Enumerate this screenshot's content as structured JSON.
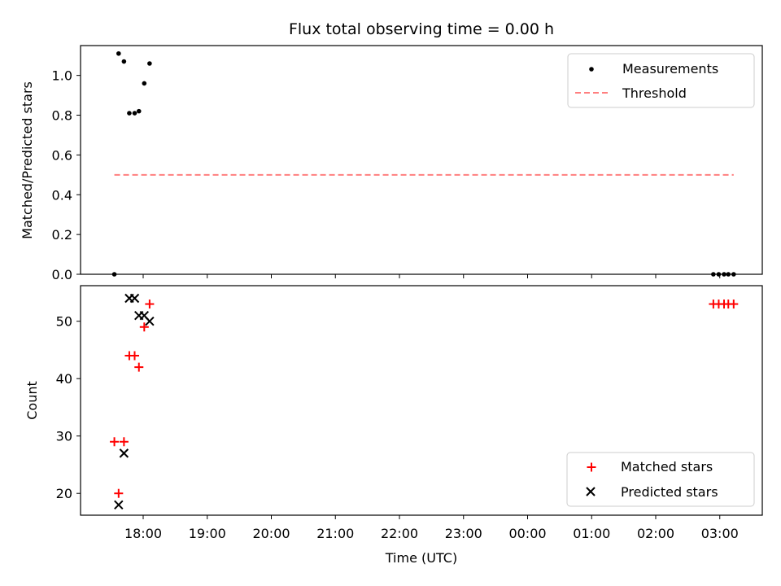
{
  "chart_data": [
    {
      "type": "scatter",
      "title": "Flux total observing time = 0.00 h",
      "ylabel": "Matched/Predicted stars",
      "ylim": [
        0,
        1.15
      ],
      "yticks": [
        "0.0",
        "0.2",
        "0.4",
        "0.6",
        "0.8",
        "1.0"
      ],
      "legend_position": "top-right",
      "series": [
        {
          "name": "Measurements",
          "marker": "dot",
          "color": "#000000",
          "points": [
            {
              "x": "17:33",
              "y": 0.0
            },
            {
              "x": "17:37",
              "y": 1.11
            },
            {
              "x": "17:42",
              "y": 1.07
            },
            {
              "x": "17:47",
              "y": 0.81
            },
            {
              "x": "17:52",
              "y": 0.81
            },
            {
              "x": "17:56",
              "y": 0.82
            },
            {
              "x": "18:01",
              "y": 0.96
            },
            {
              "x": "18:06",
              "y": 1.06
            },
            {
              "x": "02:54",
              "y": 0.0
            },
            {
              "x": "02:59",
              "y": 0.0
            },
            {
              "x": "03:04",
              "y": 0.0
            },
            {
              "x": "03:08",
              "y": 0.0
            },
            {
              "x": "03:13",
              "y": 0.0
            }
          ]
        },
        {
          "name": "Threshold",
          "style": "dashed",
          "color": "#ff7f7f",
          "x_range": [
            "17:33",
            "03:13"
          ],
          "y": 0.5
        }
      ]
    },
    {
      "type": "scatter",
      "xlabel": "Time (UTC)",
      "ylabel": "Count",
      "ylim": [
        16.2,
        56.2
      ],
      "yticks": [
        "20",
        "30",
        "40",
        "50"
      ],
      "xticks": [
        "18:00",
        "19:00",
        "20:00",
        "21:00",
        "22:00",
        "23:00",
        "00:00",
        "01:00",
        "02:00",
        "03:00"
      ],
      "legend_position": "bottom-right",
      "series": [
        {
          "name": "Matched stars",
          "marker": "plus",
          "color": "#ff0000",
          "points": [
            {
              "x": "17:33",
              "y": 29
            },
            {
              "x": "17:37",
              "y": 20
            },
            {
              "x": "17:42",
              "y": 29
            },
            {
              "x": "17:47",
              "y": 44
            },
            {
              "x": "17:52",
              "y": 44
            },
            {
              "x": "17:56",
              "y": 42
            },
            {
              "x": "18:01",
              "y": 49
            },
            {
              "x": "18:06",
              "y": 53
            },
            {
              "x": "02:54",
              "y": 53
            },
            {
              "x": "02:59",
              "y": 53
            },
            {
              "x": "03:04",
              "y": 53
            },
            {
              "x": "03:08",
              "y": 53
            },
            {
              "x": "03:13",
              "y": 53
            }
          ]
        },
        {
          "name": "Predicted stars",
          "marker": "x",
          "color": "#000000",
          "points": [
            {
              "x": "17:37",
              "y": 18
            },
            {
              "x": "17:42",
              "y": 27
            },
            {
              "x": "17:47",
              "y": 54
            },
            {
              "x": "17:52",
              "y": 54
            },
            {
              "x": "17:56",
              "y": 51
            },
            {
              "x": "18:01",
              "y": 51
            },
            {
              "x": "18:06",
              "y": 50
            }
          ]
        }
      ]
    }
  ]
}
